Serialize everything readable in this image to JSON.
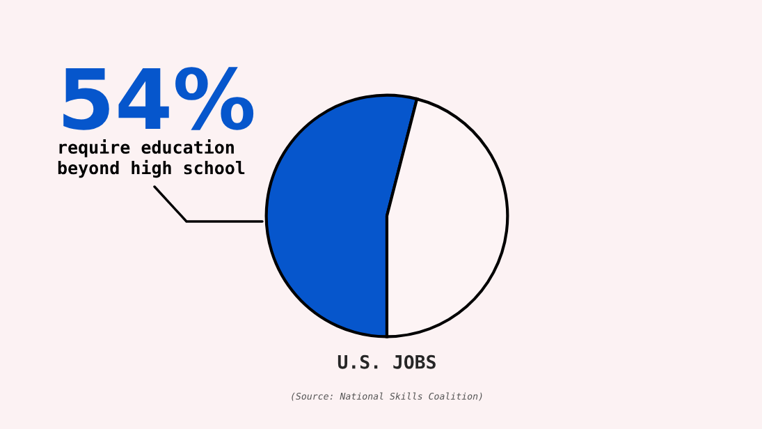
{
  "chart_data": {
    "type": "pie",
    "categories": [
      "require education beyond high school",
      null
    ],
    "values": [
      54,
      46
    ],
    "colors": [
      "#0656cc",
      "#fdf4f5"
    ],
    "value_labels": [
      "54%",
      null
    ],
    "xlabel": "U.S. JOBS",
    "annotations": [
      "(Source: National Skills Coalition)"
    ]
  }
}
